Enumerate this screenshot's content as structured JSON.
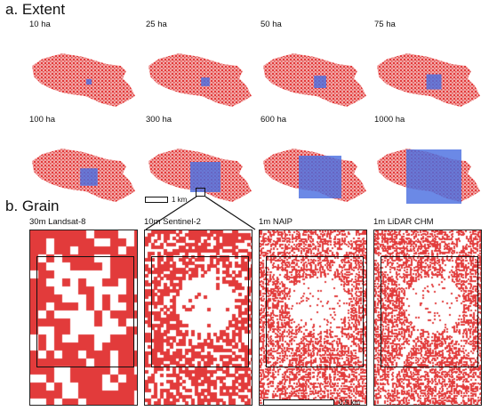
{
  "extent": {
    "title": "a. Extent",
    "panels": [
      {
        "label": "10 ha",
        "area_ha": 10
      },
      {
        "label": "25 ha",
        "area_ha": 25
      },
      {
        "label": "50 ha",
        "area_ha": 50
      },
      {
        "label": "75 ha",
        "area_ha": 75
      },
      {
        "label": "100 ha",
        "area_ha": 100
      },
      {
        "label": "300 ha",
        "area_ha": 300
      },
      {
        "label": "600 ha",
        "area_ha": 600
      },
      {
        "label": "1000 ha",
        "area_ha": 1000
      }
    ],
    "scale_label": "1 km"
  },
  "grain": {
    "title": "b. Grain",
    "panels": [
      {
        "label": "30m Landsat-8",
        "cell_m": 30
      },
      {
        "label": "10m Sentinel-2",
        "cell_m": 10
      },
      {
        "label": "1m NAIP",
        "cell_m": 1
      },
      {
        "label": "1m LiDAR CHM",
        "cell_m": 1
      }
    ],
    "scale_label": "0.5 km"
  },
  "colors": {
    "forest": "#e23b3b",
    "extent_box": "#4a6fe0",
    "outline": "#111111"
  }
}
